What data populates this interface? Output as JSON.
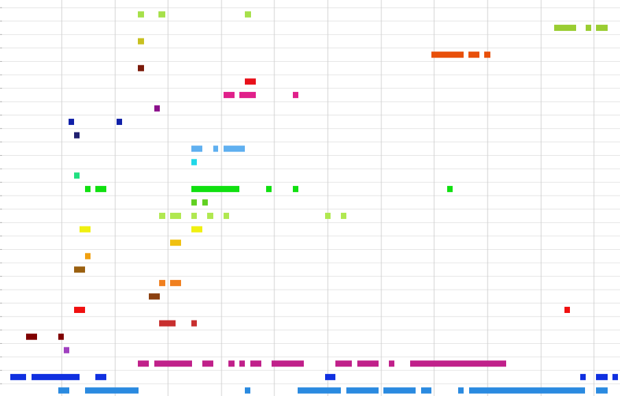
{
  "chart_data": {
    "type": "gantt",
    "xlim": [
      0,
      904
    ],
    "xticks": [
      90,
      168,
      245,
      323,
      400,
      478,
      556,
      633,
      711,
      789,
      866
    ],
    "grid": true,
    "series": [
      {
        "color": "#a6e04a",
        "segments": [
          [
            201,
            210
          ],
          [
            231,
            241
          ],
          [
            357,
            366
          ]
        ]
      },
      {
        "color": "#9acd32",
        "segments": [
          [
            808,
            840
          ],
          [
            854,
            862
          ],
          [
            869,
            886
          ]
        ]
      },
      {
        "color": "#c8c020",
        "segments": [
          [
            201,
            210
          ]
        ]
      },
      {
        "color": "#e8500a",
        "segments": [
          [
            629,
            676
          ],
          [
            683,
            699
          ],
          [
            706,
            715
          ]
        ]
      },
      {
        "color": "#7b1a0a",
        "segments": [
          [
            201,
            210
          ]
        ]
      },
      {
        "color": "#e8101a",
        "segments": [
          [
            357,
            373
          ]
        ]
      },
      {
        "color": "#e0208a",
        "segments": [
          [
            326,
            342
          ],
          [
            349,
            373
          ],
          [
            427,
            435
          ]
        ]
      },
      {
        "color": "#8b108b",
        "segments": [
          [
            225,
            233
          ]
        ]
      },
      {
        "color": "#1020a8",
        "segments": [
          [
            100,
            108
          ],
          [
            170,
            178
          ]
        ]
      },
      {
        "color": "#202070",
        "segments": [
          [
            108,
            116
          ]
        ]
      },
      {
        "color": "#60b0f0",
        "segments": [
          [
            279,
            295
          ],
          [
            311,
            318
          ],
          [
            326,
            357
          ]
        ]
      },
      {
        "color": "#20d8e8",
        "segments": [
          [
            279,
            287
          ]
        ]
      },
      {
        "color": "#20e080",
        "segments": [
          [
            108,
            116
          ]
        ]
      },
      {
        "color": "#10e010",
        "segments": [
          [
            124,
            132
          ],
          [
            139,
            155
          ],
          [
            279,
            349
          ],
          [
            388,
            396
          ],
          [
            427,
            435
          ],
          [
            652,
            660
          ]
        ]
      },
      {
        "color": "#60d020",
        "segments": [
          [
            279,
            287
          ],
          [
            295,
            303
          ]
        ]
      },
      {
        "color": "#b0e850",
        "segments": [
          [
            232,
            241
          ],
          [
            248,
            264
          ],
          [
            279,
            287
          ],
          [
            302,
            311
          ],
          [
            326,
            334
          ],
          [
            474,
            482
          ],
          [
            497,
            505
          ]
        ]
      },
      {
        "color": "#f0f010",
        "segments": [
          [
            116,
            132
          ],
          [
            279,
            295
          ]
        ]
      },
      {
        "color": "#f0c010",
        "segments": [
          [
            248,
            264
          ]
        ]
      },
      {
        "color": "#f0a010",
        "segments": [
          [
            124,
            132
          ]
        ]
      },
      {
        "color": "#9a6010",
        "segments": [
          [
            108,
            124
          ]
        ]
      },
      {
        "color": "#f08020",
        "segments": [
          [
            232,
            241
          ],
          [
            248,
            264
          ]
        ]
      },
      {
        "color": "#8b4010",
        "segments": [
          [
            217,
            233
          ]
        ]
      },
      {
        "color": "#f01010",
        "segments": [
          [
            108,
            124
          ],
          [
            823,
            831
          ]
        ]
      },
      {
        "color": "#c83030",
        "segments": [
          [
            232,
            256
          ],
          [
            279,
            287
          ]
        ]
      },
      {
        "color": "#800000",
        "segments": [
          [
            38,
            54
          ],
          [
            85,
            93
          ]
        ]
      },
      {
        "color": "#a040c0",
        "segments": [
          [
            93,
            101
          ]
        ]
      },
      {
        "color": "#c0208a",
        "segments": [
          [
            201,
            217
          ],
          [
            225,
            280
          ],
          [
            295,
            311
          ],
          [
            333,
            342
          ],
          [
            349,
            357
          ],
          [
            365,
            381
          ],
          [
            396,
            443
          ],
          [
            489,
            513
          ],
          [
            521,
            552
          ],
          [
            567,
            575
          ],
          [
            598,
            738
          ]
        ]
      },
      {
        "color": "#1030e0",
        "segments": [
          [
            15,
            38
          ],
          [
            46,
            116
          ],
          [
            139,
            155
          ],
          [
            474,
            489
          ],
          [
            846,
            854
          ],
          [
            869,
            886
          ],
          [
            893,
            901
          ]
        ]
      },
      {
        "color": "#2a8ae0",
        "segments": [
          [
            85,
            101
          ],
          [
            124,
            202
          ],
          [
            357,
            365
          ],
          [
            434,
            497
          ],
          [
            505,
            552
          ],
          [
            559,
            606
          ],
          [
            614,
            629
          ],
          [
            668,
            676
          ],
          [
            684,
            853
          ],
          [
            869,
            886
          ]
        ]
      }
    ]
  }
}
